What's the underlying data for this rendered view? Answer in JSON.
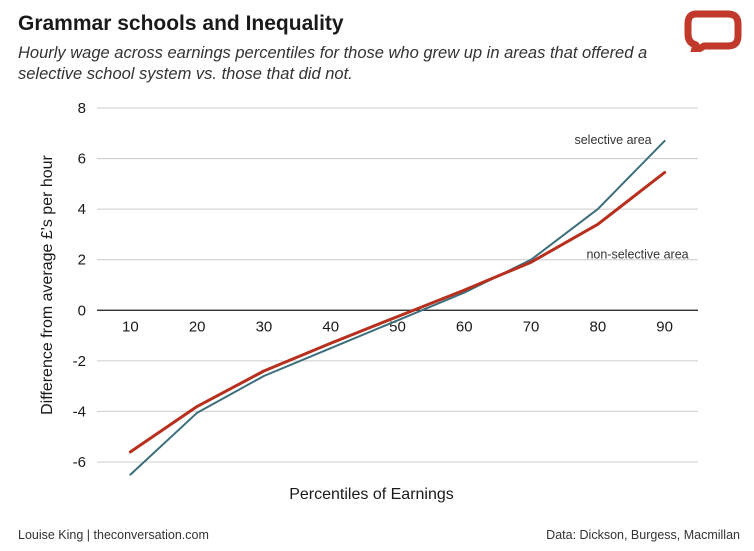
{
  "header": {
    "title": "Grammar schools and Inequality",
    "subtitle": "Hourly wage across earnings percentiles for those who grew up in areas that offered a selective school system vs. those that did not."
  },
  "footer": {
    "credit": "Louise King | theconversation.com",
    "source": "Data: Dickson, Burgess, Macmillan"
  },
  "logo": {
    "icon": "speech-bubble-icon",
    "color": "#c0392b"
  },
  "chart_data": {
    "type": "line",
    "xlabel": "Percentiles of Earnings",
    "ylabel": "Difference from average £'s per hour",
    "x": [
      10,
      20,
      30,
      40,
      50,
      60,
      70,
      80,
      90
    ],
    "xlim": [
      5,
      95
    ],
    "ylim": [
      -6,
      8
    ],
    "yticks": [
      -6,
      -4,
      -2,
      0,
      2,
      4,
      6,
      8
    ],
    "grid": true,
    "series": [
      {
        "name": "selective area",
        "color": "#3d6e7c",
        "values": [
          -6.5,
          -4.05,
          -2.6,
          -1.5,
          -0.4,
          0.7,
          2.0,
          4.0,
          6.7
        ]
      },
      {
        "name": "non-selective area",
        "color": "#b82f1d",
        "values": [
          -5.6,
          -3.8,
          -2.4,
          -1.3,
          -0.25,
          0.8,
          1.9,
          3.4,
          5.45
        ]
      }
    ]
  }
}
